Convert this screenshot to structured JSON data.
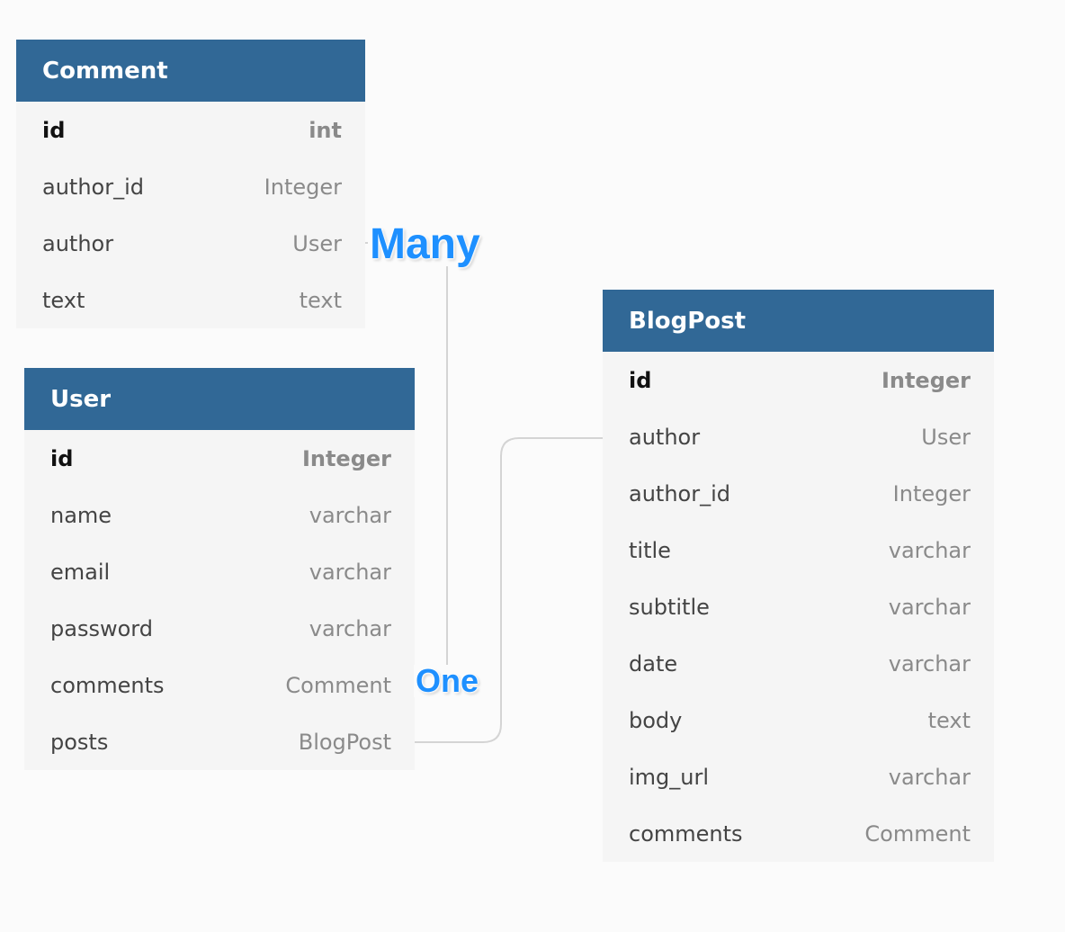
{
  "tables": {
    "comment": {
      "title": "Comment",
      "rows": [
        {
          "name": "id",
          "type": "int"
        },
        {
          "name": "author_id",
          "type": "Integer"
        },
        {
          "name": "author",
          "type": "User"
        },
        {
          "name": "text",
          "type": "text"
        }
      ]
    },
    "user": {
      "title": "User",
      "rows": [
        {
          "name": "id",
          "type": "Integer"
        },
        {
          "name": "name",
          "type": "varchar"
        },
        {
          "name": "email",
          "type": "varchar"
        },
        {
          "name": "password",
          "type": "varchar"
        },
        {
          "name": "comments",
          "type": "Comment"
        },
        {
          "name": "posts",
          "type": "BlogPost"
        }
      ]
    },
    "blogpost": {
      "title": "BlogPost",
      "rows": [
        {
          "name": "id",
          "type": "Integer"
        },
        {
          "name": "author",
          "type": "User"
        },
        {
          "name": "author_id",
          "type": "Integer"
        },
        {
          "name": "title",
          "type": "varchar"
        },
        {
          "name": "subtitle",
          "type": "varchar"
        },
        {
          "name": "date",
          "type": "varchar"
        },
        {
          "name": "body",
          "type": "text"
        },
        {
          "name": "img_url",
          "type": "varchar"
        },
        {
          "name": "comments",
          "type": "Comment"
        }
      ]
    }
  },
  "relationship_labels": {
    "many": "Many",
    "one": "One"
  },
  "colors": {
    "header": "#316896",
    "row_bg": "#f5f5f5",
    "canvas": "#fbfbfb",
    "connector": "#d4d4d4",
    "label": "#1e90ff"
  }
}
